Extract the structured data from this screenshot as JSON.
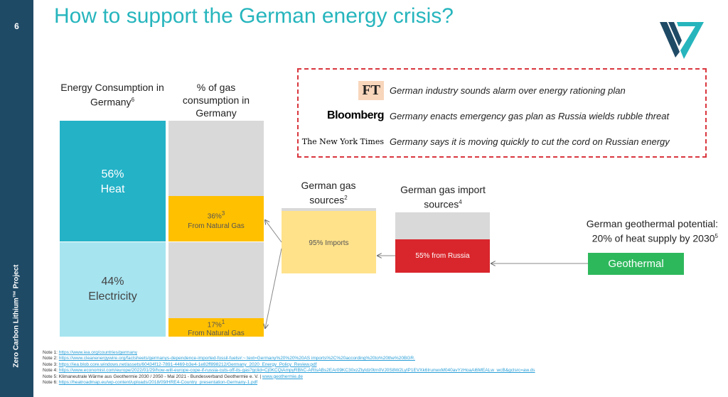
{
  "slide": {
    "page_number": "6",
    "side_label": "Zero Carbon Lithium™ Project",
    "title": "How to support the German energy crisis?"
  },
  "energy_column": {
    "heading": "Energy Consumption in Germany",
    "heading_sup": "6",
    "heat_percent": "56%",
    "heat_label": "Heat",
    "elec_percent": "44%",
    "elec_label": "Electricity",
    "heat_share": 56,
    "elec_share": 44,
    "heat_color": "#24b2c7",
    "elec_color": "#a6e4f0"
  },
  "gas_column": {
    "heading": "% of gas consumption in Germany",
    "heat_gas_percent": "36%",
    "heat_gas_sup": "3",
    "heat_gas_label": "From Natural Gas",
    "elec_gas_percent": "17%",
    "elec_gas_sup": "1",
    "elec_gas_label": "From Natural Gas",
    "heat_gas_share": 36,
    "elec_gas_share": 17,
    "gas_color": "#ffc000",
    "grey_color": "#d9d9d9"
  },
  "gas_sources": {
    "heading": "German gas sources",
    "heading_sup": "2",
    "imports_label": "95% Imports",
    "imports_share": 95,
    "imports_color": "#ffe28a"
  },
  "gas_import_sources": {
    "heading": "German gas import sources",
    "heading_sup": "4",
    "russia_label": "55% from Russia",
    "russia_share": 55,
    "russia_color": "#d9262c"
  },
  "geothermal": {
    "heading_line1": "German  geothermal potential:",
    "heading_line2": "20% of heat supply by 2030",
    "heading_sup": "5",
    "box_label": "Geothermal",
    "box_color": "#2eb85c"
  },
  "news": [
    {
      "source": "FT",
      "source_icon": "ft-logo",
      "headline": "German industry sounds alarm over energy rationing plan"
    },
    {
      "source": "Bloomberg",
      "source_icon": "bloomberg-logo",
      "headline": "Germany enacts emergency gas plan as Russia wields rubble threat"
    },
    {
      "source": "The New York Times",
      "source_icon": "nyt-logo",
      "headline": "Germany says it is moving quickly to cut the cord on Russian energy"
    }
  ],
  "notes": [
    {
      "label": "Note 1: ",
      "link": "https://www.iea.org/countries/germany",
      "suffix": ""
    },
    {
      "label": "Note 2: ",
      "link": "https://www.cleanenergywire.org/factsheets/germanys-dependence-imported-fossil-fuels#:~:text=Germany%20%20%20AS imports%2C%20according%20to%20the%20BGR.",
      "suffix": ""
    },
    {
      "label": "Note 3: ",
      "link": "https://iea.blob.core.windows.net/assets/60434f12-7891-4469-b3e4-1e82ff898212/Germany_2020_Energy_Policy_Review.pdf",
      "suffix": ""
    },
    {
      "label": "Note 4: ",
      "link": "https://www.economist.com/europe/2022/01/29/how-will-europe-cope-if-russia-cuts-off-its-gas?gclid=Cj0KCQiAmpyRBhC-ARIsABs2EAr09KC30xzZtyIdz0trn0VJ0S8W2LyIP1EVXk6IrunwxM040avYzHoaAl6MEALw_wcB&gclsrc=aw.ds",
      "suffix": ""
    },
    {
      "label": "Note 5: Klimaneutrale Wärme aus Geothermie 2030 / 2050 - Mai 2021 - Bundesverband Geothermie e. V. | ",
      "link": "www.geothermie.de",
      "suffix": ""
    },
    {
      "label": "Note 6: ",
      "link": "https://heatroadmap.eu/wp-content/uploads/2018/09/HRE4-Country_presentation-Germany-1.pdf",
      "suffix": ""
    }
  ],
  "colors": {
    "sidebar": "#1f4a66",
    "title": "#26b5bd",
    "dashed_border": "#d9363e",
    "link": "#2a9fd8"
  }
}
